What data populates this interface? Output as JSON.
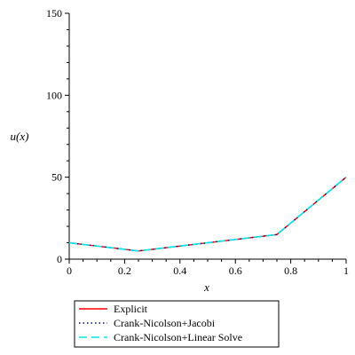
{
  "chart_data": {
    "type": "line",
    "title": "",
    "xlabel": "x",
    "ylabel": "u(x)",
    "xlim": [
      0,
      1
    ],
    "ylim": [
      0,
      150
    ],
    "xticks": [
      0,
      0.2,
      0.4,
      0.6,
      0.8,
      1
    ],
    "xtick_labels": [
      "0",
      "0.2",
      "0.4",
      "0.6",
      "0.8",
      "1"
    ],
    "yticks": [
      0,
      50,
      100,
      150
    ],
    "ytick_labels": [
      "0",
      "50",
      "100",
      "150"
    ],
    "grid": false,
    "legend_position": "bottom",
    "series": [
      {
        "name": "Explicit",
        "color": "#ff0000",
        "style": "solid",
        "x": [
          0,
          0.25,
          0.5,
          0.75,
          1
        ],
        "y": [
          10,
          5,
          10,
          15,
          50
        ]
      },
      {
        "name": "Crank-Nicolson+Jacobi",
        "color": "#000080",
        "style": "dotted",
        "x": [
          0,
          0.25,
          0.5,
          0.75,
          1
        ],
        "y": [
          10,
          5,
          10,
          15,
          50
        ]
      },
      {
        "name": "Crank-Nicolson+Linear Solve",
        "color": "#00e5ee",
        "style": "dashed",
        "x": [
          0,
          0.25,
          0.5,
          0.75,
          1
        ],
        "y": [
          10,
          5,
          10,
          15,
          50
        ]
      }
    ]
  }
}
